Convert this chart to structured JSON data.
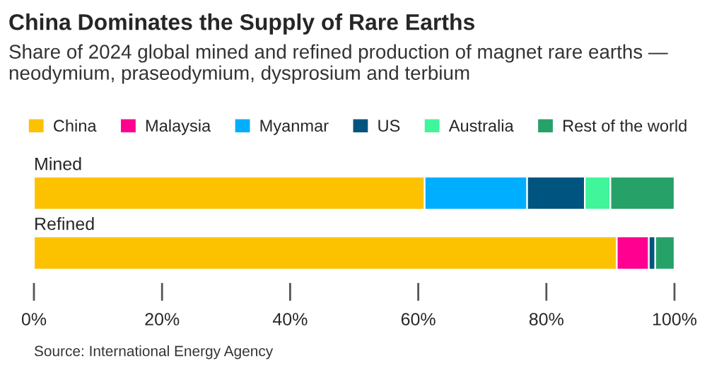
{
  "chart_data": {
    "type": "bar",
    "orientation": "horizontal",
    "stacked": true,
    "title": "China Dominates the Supply of Rare Earths",
    "subtitle": "Share of 2024 global mined and refined production of magnet rare earths — neodymium, praseodymium, dysprosium and terbium",
    "categories": [
      "Mined",
      "Refined"
    ],
    "series": [
      {
        "name": "China",
        "color": "#fcc200",
        "values": [
          61,
          91
        ]
      },
      {
        "name": "Malaysia",
        "color": "#ff0090",
        "values": [
          0,
          5
        ]
      },
      {
        "name": "Myanmar",
        "color": "#00aeff",
        "values": [
          16,
          0
        ]
      },
      {
        "name": "US",
        "color": "#005580",
        "values": [
          9,
          1
        ]
      },
      {
        "name": "Australia",
        "color": "#40f59a",
        "values": [
          4,
          0
        ]
      },
      {
        "name": "Rest of the world",
        "color": "#26a269",
        "values": [
          10,
          3
        ]
      }
    ],
    "xlim": [
      0,
      100
    ],
    "xticks": [
      {
        "value": 0,
        "label": "0%"
      },
      {
        "value": 20,
        "label": "20%"
      },
      {
        "value": 40,
        "label": "40%"
      },
      {
        "value": 60,
        "label": "60%"
      },
      {
        "value": 80,
        "label": "80%"
      },
      {
        "value": 100,
        "label": "100%"
      }
    ],
    "legend": "top left",
    "grid": false,
    "annotations": [
      "Source: International Energy Agency"
    ]
  }
}
